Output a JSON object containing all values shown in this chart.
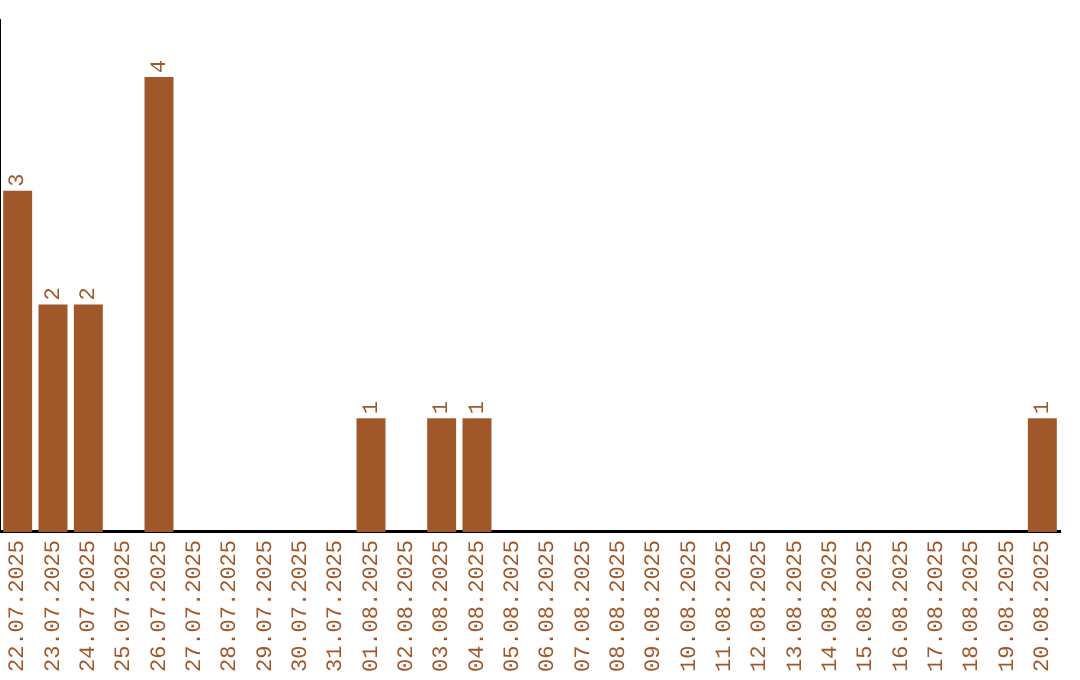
{
  "chart_data": {
    "type": "bar",
    "categories": [
      "22.07.2025",
      "23.07.2025",
      "24.07.2025",
      "25.07.2025",
      "26.07.2025",
      "27.07.2025",
      "28.07.2025",
      "29.07.2025",
      "30.07.2025",
      "31.07.2025",
      "01.08.2025",
      "02.08.2025",
      "03.08.2025",
      "04.08.2025",
      "05.08.2025",
      "06.08.2025",
      "07.08.2025",
      "08.08.2025",
      "09.08.2025",
      "10.08.2025",
      "11.08.2025",
      "12.08.2025",
      "13.08.2025",
      "14.08.2025",
      "15.08.2025",
      "16.08.2025",
      "17.08.2025",
      "18.08.2025",
      "19.08.2025",
      "20.08.2025"
    ],
    "values": [
      3,
      2,
      2,
      0,
      4,
      0,
      0,
      0,
      0,
      0,
      1,
      0,
      1,
      1,
      0,
      0,
      0,
      0,
      0,
      0,
      0,
      0,
      0,
      0,
      0,
      0,
      0,
      0,
      0,
      1
    ],
    "value_labels": [
      "3",
      "2",
      "2",
      null,
      "4",
      null,
      null,
      null,
      null,
      null,
      "1",
      null,
      "1",
      "1",
      null,
      null,
      null,
      null,
      null,
      null,
      null,
      null,
      null,
      null,
      null,
      null,
      null,
      null,
      null,
      "1"
    ],
    "color": "#a0572a",
    "grid": false,
    "legend": false,
    "tick_labels": "x"
  }
}
